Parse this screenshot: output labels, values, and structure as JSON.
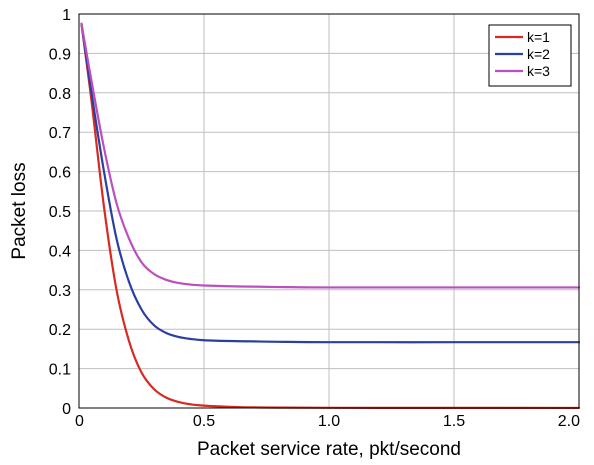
{
  "chart_data": {
    "type": "line",
    "title": "",
    "xlabel": "Packet service rate, pkt/second",
    "ylabel": "Packet loss",
    "xlim": [
      0,
      2.0
    ],
    "ylim": [
      0,
      1
    ],
    "xticks": [
      {
        "value": 0,
        "label": "0"
      },
      {
        "value": 0.5,
        "label": "0.5"
      },
      {
        "value": 1.0,
        "label": "1.0"
      },
      {
        "value": 1.5,
        "label": "1.5"
      },
      {
        "value": 2.0,
        "label": "2.0"
      }
    ],
    "yticks": [
      {
        "value": 0,
        "label": "0"
      },
      {
        "value": 0.1,
        "label": "0.1"
      },
      {
        "value": 0.2,
        "label": "0.2"
      },
      {
        "value": 0.3,
        "label": "0.3"
      },
      {
        "value": 0.4,
        "label": "0.4"
      },
      {
        "value": 0.5,
        "label": "0.5"
      },
      {
        "value": 0.6,
        "label": "0.6"
      },
      {
        "value": 0.7,
        "label": "0.7"
      },
      {
        "value": 0.8,
        "label": "0.8"
      },
      {
        "value": 0.9,
        "label": "0.9"
      },
      {
        "value": 1,
        "label": "1"
      }
    ],
    "grid": true,
    "legend_position": "top-right",
    "series": [
      {
        "name": "k=1",
        "color": "#d62a22",
        "x": [
          0.01,
          0.05,
          0.1,
          0.15,
          0.2,
          0.25,
          0.3,
          0.35,
          0.4,
          0.45,
          0.5,
          0.6,
          0.7,
          0.8,
          1.0,
          1.5,
          2.0
        ],
        "y": [
          0.975,
          0.78,
          0.51,
          0.3,
          0.17,
          0.09,
          0.048,
          0.026,
          0.015,
          0.009,
          0.006,
          0.003,
          0.0015,
          0.001,
          0.0005,
          0.0003,
          0.0002
        ]
      },
      {
        "name": "k=2",
        "color": "#2b3f9e",
        "x": [
          0.01,
          0.05,
          0.1,
          0.15,
          0.2,
          0.25,
          0.3,
          0.35,
          0.4,
          0.45,
          0.5,
          0.6,
          0.7,
          0.8,
          1.0,
          1.5,
          2.0
        ],
        "y": [
          0.975,
          0.8,
          0.6,
          0.43,
          0.32,
          0.25,
          0.21,
          0.19,
          0.18,
          0.175,
          0.172,
          0.17,
          0.169,
          0.168,
          0.167,
          0.167,
          0.167
        ]
      },
      {
        "name": "k=3",
        "color": "#bb4fbf",
        "x": [
          0.01,
          0.05,
          0.1,
          0.15,
          0.2,
          0.25,
          0.3,
          0.35,
          0.4,
          0.45,
          0.5,
          0.6,
          0.7,
          0.8,
          1.0,
          1.5,
          2.0
        ],
        "y": [
          0.975,
          0.83,
          0.66,
          0.52,
          0.43,
          0.37,
          0.34,
          0.325,
          0.317,
          0.313,
          0.311,
          0.309,
          0.308,
          0.307,
          0.306,
          0.306,
          0.306
        ]
      }
    ]
  }
}
